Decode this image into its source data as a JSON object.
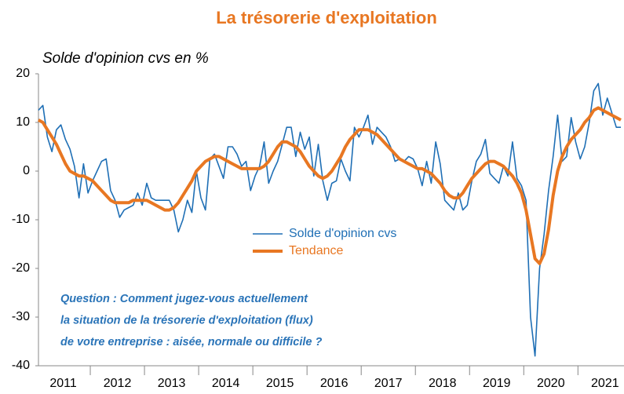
{
  "chart_data": {
    "type": "line",
    "title": "La trésorerie d'exploitation",
    "subtitle": "Solde d'opinion cvs en %",
    "annotation": [
      "Question : Comment jugez-vous actuellement",
      "la situation de la trésorerie d'exploitation (flux)",
      "de votre entreprise : aisée, normale ou difficile ?"
    ],
    "x": [
      2011.042,
      2011.125,
      2011.208,
      2011.292,
      2011.375,
      2011.458,
      2011.542,
      2011.625,
      2011.708,
      2011.792,
      2011.875,
      2011.958,
      2012.042,
      2012.125,
      2012.208,
      2012.292,
      2012.375,
      2012.458,
      2012.542,
      2012.625,
      2012.708,
      2012.792,
      2012.875,
      2012.958,
      2013.042,
      2013.125,
      2013.208,
      2013.292,
      2013.375,
      2013.458,
      2013.542,
      2013.625,
      2013.708,
      2013.792,
      2013.875,
      2013.958,
      2014.042,
      2014.125,
      2014.208,
      2014.292,
      2014.375,
      2014.458,
      2014.542,
      2014.625,
      2014.708,
      2014.792,
      2014.875,
      2014.958,
      2015.042,
      2015.125,
      2015.208,
      2015.292,
      2015.375,
      2015.458,
      2015.542,
      2015.625,
      2015.708,
      2015.792,
      2015.875,
      2015.958,
      2016.042,
      2016.125,
      2016.208,
      2016.292,
      2016.375,
      2016.458,
      2016.542,
      2016.625,
      2016.708,
      2016.792,
      2016.875,
      2016.958,
      2017.042,
      2017.125,
      2017.208,
      2017.292,
      2017.375,
      2017.458,
      2017.542,
      2017.625,
      2017.708,
      2017.792,
      2017.875,
      2017.958,
      2018.042,
      2018.125,
      2018.208,
      2018.292,
      2018.375,
      2018.458,
      2018.542,
      2018.625,
      2018.708,
      2018.792,
      2018.875,
      2018.958,
      2019.042,
      2019.125,
      2019.208,
      2019.292,
      2019.375,
      2019.458,
      2019.542,
      2019.625,
      2019.708,
      2019.792,
      2019.875,
      2019.958,
      2020.042,
      2020.125,
      2020.208,
      2020.292,
      2020.375,
      2020.458,
      2020.542,
      2020.625,
      2020.708,
      2020.792,
      2020.875,
      2020.958,
      2021.042,
      2021.125,
      2021.208,
      2021.292,
      2021.375,
      2021.458,
      2021.542,
      2021.625,
      2021.708,
      2021.792
    ],
    "series": [
      {
        "name": "Solde d'opinion cvs",
        "color": "#1f6fb5",
        "width": 1.6,
        "values": [
          12.5,
          13.5,
          7,
          4,
          8.5,
          9.5,
          6.5,
          4.5,
          1,
          -5.5,
          1.5,
          -4.5,
          -2,
          0,
          2,
          2.5,
          -4,
          -6,
          -9.5,
          -8,
          -7.5,
          -7,
          -4.5,
          -7,
          -2.5,
          -5.5,
          -6,
          -6,
          -6,
          -6,
          -8,
          -12.5,
          -10,
          -6,
          -8.5,
          0,
          -5.5,
          -8,
          2.5,
          3.5,
          1,
          -1.5,
          5,
          5,
          3.5,
          1,
          2,
          -4,
          -1,
          1,
          6,
          -2.5,
          0,
          2,
          5.5,
          9,
          9,
          3,
          8,
          4.5,
          7,
          -1,
          5.5,
          -2,
          -6,
          -2.5,
          -2,
          2.5,
          0,
          -2,
          9,
          7,
          9,
          11.5,
          5.5,
          9,
          8,
          7,
          5,
          2,
          2.5,
          2,
          3,
          2.5,
          0.5,
          -3,
          2,
          -2.5,
          6,
          1.5,
          -6,
          -7,
          -8,
          -4.5,
          -8,
          -7,
          -2,
          2,
          3.5,
          6.5,
          -0.5,
          -1.5,
          -2.5,
          1,
          -1,
          6,
          -1.5,
          -3,
          -6,
          -30,
          -38,
          -20,
          -13,
          -4,
          3,
          11.5,
          2,
          3,
          11,
          6,
          2.5,
          5,
          10,
          16.5,
          18,
          11.5,
          15,
          12,
          9,
          9
        ]
      },
      {
        "name": "Tendance",
        "color": "#e87722",
        "width": 4,
        "values": [
          10.5,
          10,
          8.5,
          7,
          5.5,
          3.5,
          1.5,
          0,
          -0.5,
          -1,
          -1,
          -1.5,
          -2,
          -3,
          -4,
          -5,
          -6,
          -6.5,
          -6.5,
          -6.5,
          -6.5,
          -6,
          -6,
          -6,
          -6,
          -6.5,
          -7,
          -7.5,
          -8,
          -8,
          -7.5,
          -6.5,
          -5,
          -3.5,
          -2,
          0,
          1,
          2,
          2.5,
          3,
          3,
          2.5,
          2,
          1.5,
          1,
          0.5,
          0.5,
          0.5,
          0.5,
          0.5,
          1,
          2,
          3.5,
          5,
          6,
          6,
          5.5,
          5,
          4,
          2.5,
          1,
          0,
          -1,
          -1.5,
          -1,
          0,
          1.5,
          3,
          5,
          6.5,
          7.5,
          8.5,
          8.5,
          8.5,
          8,
          7.5,
          6.5,
          5.5,
          4.5,
          3.5,
          2.5,
          2,
          1.5,
          1,
          0.5,
          0.5,
          0,
          -0.5,
          -1.5,
          -2.5,
          -4,
          -5,
          -5.5,
          -5.5,
          -4.5,
          -3,
          -1.5,
          -0.5,
          0.5,
          1.5,
          2,
          2,
          1.5,
          1,
          0,
          -1,
          -2.5,
          -4.5,
          -8,
          -13,
          -18,
          -19,
          -17,
          -12,
          -5,
          0,
          3,
          5,
          6.5,
          7.5,
          8.5,
          10,
          11,
          12.5,
          13,
          12.5,
          12,
          11.5,
          11,
          10.5
        ]
      }
    ],
    "xlim": [
      2011,
      2021.85
    ],
    "xticks": [
      2011,
      2012,
      2013,
      2014,
      2015,
      2016,
      2017,
      2018,
      2019,
      2020,
      2021
    ],
    "ylim": [
      -40,
      20
    ],
    "yticks": [
      -40,
      -30,
      -20,
      -10,
      0,
      10,
      20
    ],
    "grid": false
  }
}
